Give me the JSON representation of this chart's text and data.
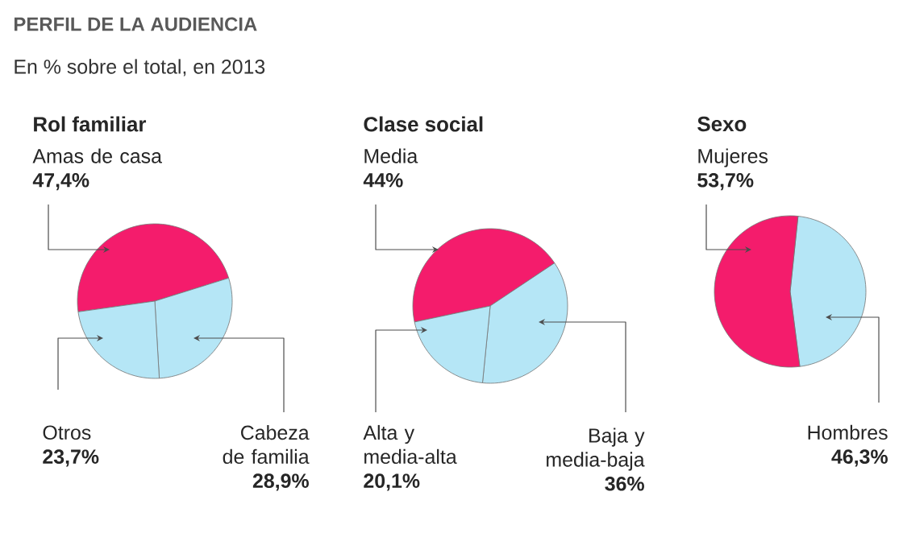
{
  "chart_data": [
    {
      "type": "pie",
      "title": "Rol familiar",
      "annotations": [
        "PERFIL DE LA AUDIENCIA",
        "En % sobre el total, en 2013"
      ],
      "categories": [
        "Amas de casa",
        "Cabeza de familia",
        "Otros"
      ],
      "values": [
        47.4,
        28.9,
        23.7
      ],
      "value_labels": [
        "47,4%",
        "28,9%",
        "23,7%"
      ],
      "colors": [
        "#f41c6c",
        "#b5e6f6",
        "#b5e6f6"
      ]
    },
    {
      "type": "pie",
      "title": "Clase social",
      "categories": [
        "Media",
        "Baja y media-baja",
        "Alta y media-alta"
      ],
      "values": [
        44,
        36,
        20.1
      ],
      "value_labels": [
        "44%",
        "36%",
        "20,1%"
      ],
      "colors": [
        "#f41c6c",
        "#b5e6f6",
        "#b5e6f6"
      ]
    },
    {
      "type": "pie",
      "title": "Sexo",
      "categories": [
        "Hombres",
        "Mujeres"
      ],
      "values": [
        46.3,
        53.7
      ],
      "value_labels": [
        "46,3%",
        "53,7%"
      ],
      "colors": [
        "#b5e6f6",
        "#f41c6c"
      ]
    }
  ]
}
